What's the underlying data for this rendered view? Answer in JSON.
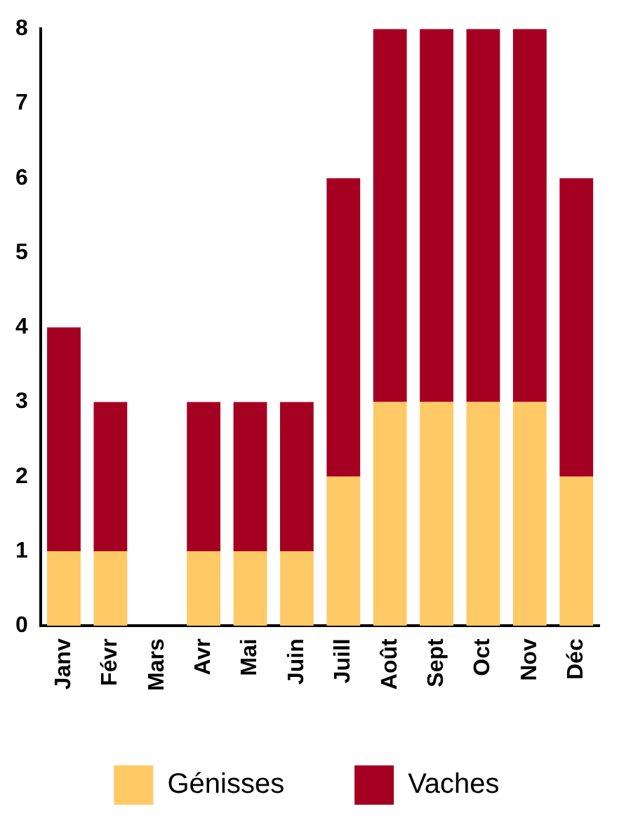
{
  "chart_data": {
    "type": "bar",
    "stacked": true,
    "categories": [
      "Janv",
      "Févr",
      "Mars",
      "Avr",
      "Mai",
      "Juin",
      "Juill",
      "Août",
      "Sept",
      "Oct",
      "Nov",
      "Déc"
    ],
    "series": [
      {
        "name": "Génisses",
        "color": "#ffc966",
        "values": [
          1,
          1,
          0,
          1,
          1,
          1,
          2,
          3,
          3,
          3,
          3,
          2
        ]
      },
      {
        "name": "Vaches",
        "color": "#a50021",
        "values": [
          3,
          2,
          0,
          2,
          2,
          2,
          4,
          5,
          5,
          5,
          5,
          4
        ]
      }
    ],
    "ylim": [
      0,
      8
    ],
    "yticks": [
      0,
      1,
      2,
      3,
      4,
      5,
      6,
      7,
      8
    ],
    "grid": false,
    "legend": "bottom"
  }
}
